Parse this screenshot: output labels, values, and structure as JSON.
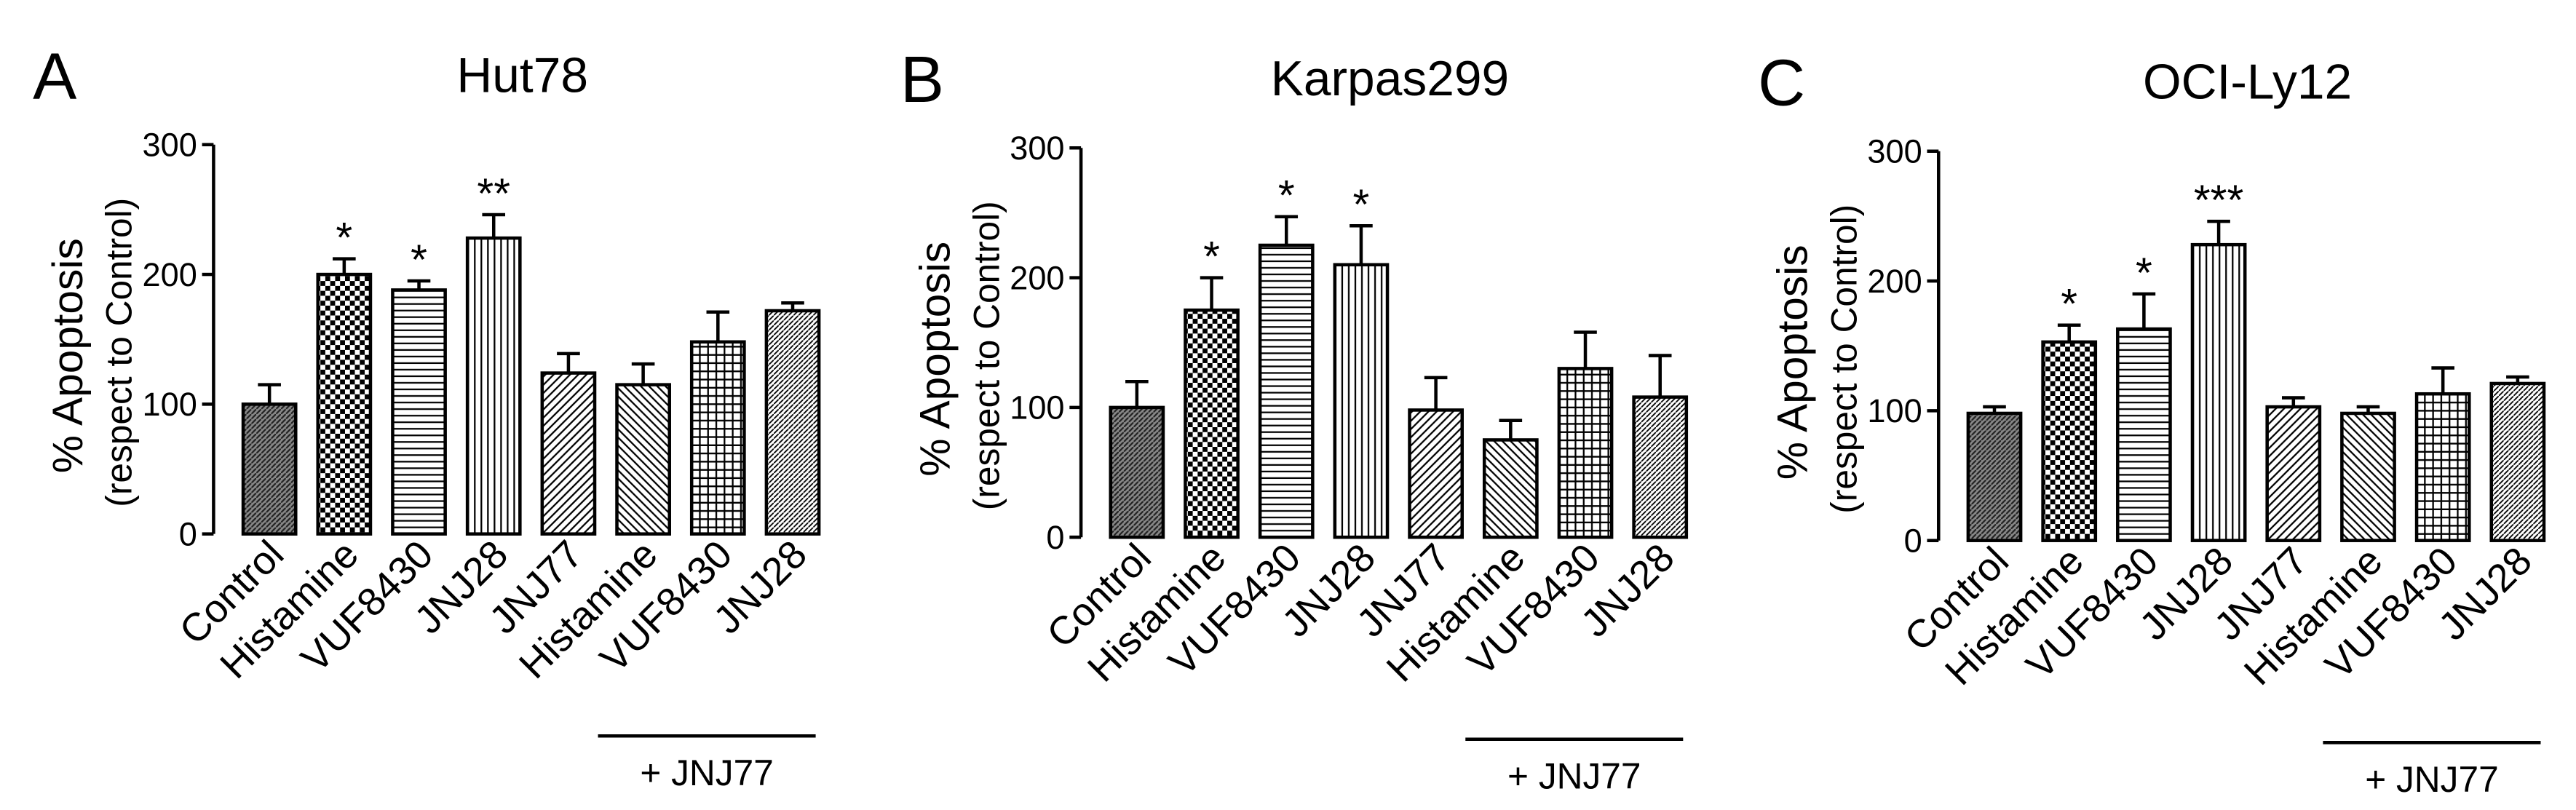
{
  "chart_data": [
    {
      "type": "bar",
      "letter": "A",
      "title": "Hut78",
      "ylabel": "% Apoptosis",
      "ylabel_sub": "(respect to Control)",
      "categories": [
        "Control",
        "Histamine",
        "VUF8430",
        "JNJ28",
        "JNJ77",
        "Histamine",
        "VUF8430",
        "JNJ28"
      ],
      "values": [
        100,
        200,
        188,
        228,
        124,
        115,
        148,
        172
      ],
      "errors": [
        15,
        12,
        7,
        18,
        15,
        16,
        23,
        6
      ],
      "significance": [
        null,
        "*",
        "*",
        "**",
        null,
        null,
        null,
        null
      ],
      "patterns": [
        "dense",
        "checker",
        "horizontal",
        "vertical",
        "diag-right",
        "diag-left",
        "grid",
        "diag-fine"
      ],
      "ylim": [
        0,
        300
      ],
      "yticks": [
        0,
        100,
        200,
        300
      ],
      "group_label": "+ JNJ77",
      "group_start": 5,
      "group_end": 7
    },
    {
      "type": "bar",
      "letter": "B",
      "title": "Karpas299",
      "ylabel": "% Apoptosis",
      "ylabel_sub": "(respect to Control)",
      "categories": [
        "Control",
        "Histamine",
        "VUF8430",
        "JNJ28",
        "JNJ77",
        "Histamine",
        "VUF8430",
        "JNJ28"
      ],
      "values": [
        100,
        175,
        225,
        210,
        98,
        75,
        130,
        108
      ],
      "errors": [
        20,
        25,
        22,
        30,
        25,
        15,
        28,
        32
      ],
      "significance": [
        null,
        "*",
        "*",
        "*",
        null,
        null,
        null,
        null
      ],
      "patterns": [
        "dense",
        "checker",
        "horizontal",
        "vertical",
        "diag-right",
        "diag-left",
        "grid",
        "diag-fine"
      ],
      "ylim": [
        0,
        300
      ],
      "yticks": [
        0,
        100,
        200,
        300
      ],
      "group_label": "+ JNJ77",
      "group_start": 5,
      "group_end": 7
    },
    {
      "type": "bar",
      "letter": "C",
      "title": "OCI-Ly12",
      "ylabel": "% Apoptosis",
      "ylabel_sub": "(respect to Control)",
      "categories": [
        "Control",
        "Histamine",
        "VUF8430",
        "JNJ28",
        "JNJ77",
        "Histamine",
        "VUF8430",
        "JNJ28"
      ],
      "values": [
        98,
        153,
        163,
        228,
        103,
        98,
        113,
        121
      ],
      "errors": [
        5,
        13,
        27,
        18,
        7,
        5,
        20,
        5
      ],
      "significance": [
        null,
        "*",
        "*",
        "***",
        null,
        null,
        null,
        null
      ],
      "patterns": [
        "dense",
        "checker",
        "horizontal",
        "vertical",
        "diag-right",
        "diag-left",
        "grid",
        "diag-fine"
      ],
      "ylim": [
        0,
        300
      ],
      "yticks": [
        0,
        100,
        200,
        300
      ],
      "group_label": "+ JNJ77",
      "group_start": 5,
      "group_end": 7
    }
  ]
}
